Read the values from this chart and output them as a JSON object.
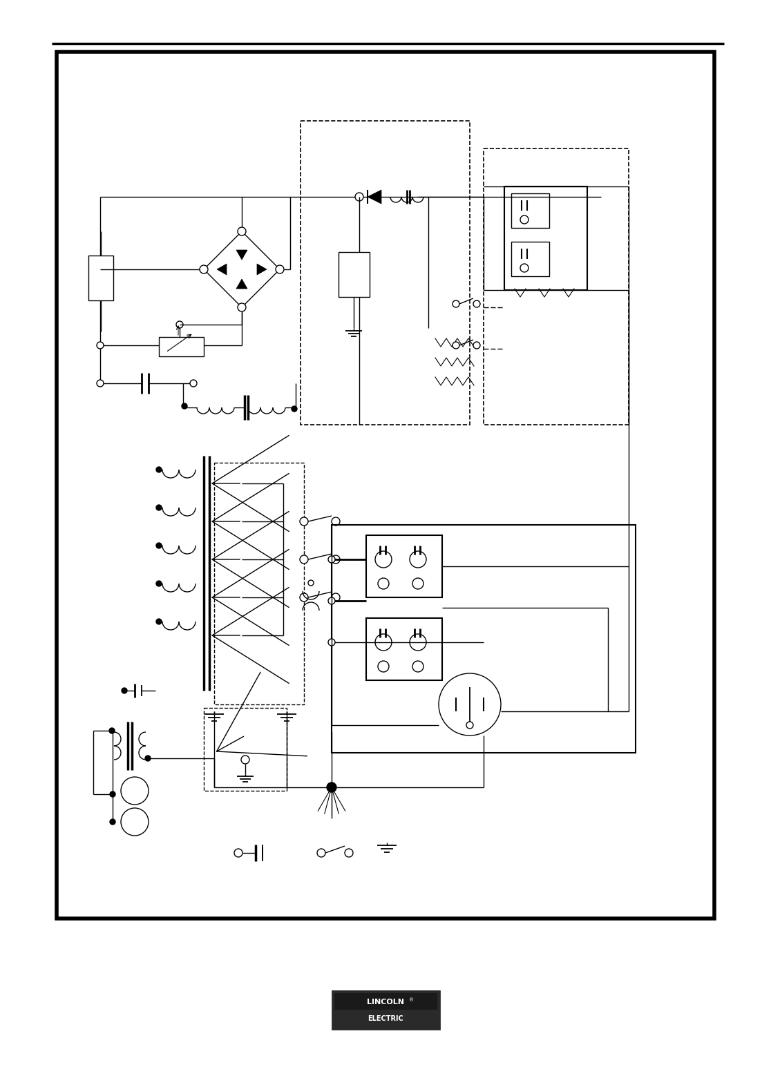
{
  "bg_color": "#ffffff",
  "lc": "#000000",
  "lw": 1.0,
  "fig_w": 11.16,
  "fig_h": 15.45,
  "dpi": 100
}
